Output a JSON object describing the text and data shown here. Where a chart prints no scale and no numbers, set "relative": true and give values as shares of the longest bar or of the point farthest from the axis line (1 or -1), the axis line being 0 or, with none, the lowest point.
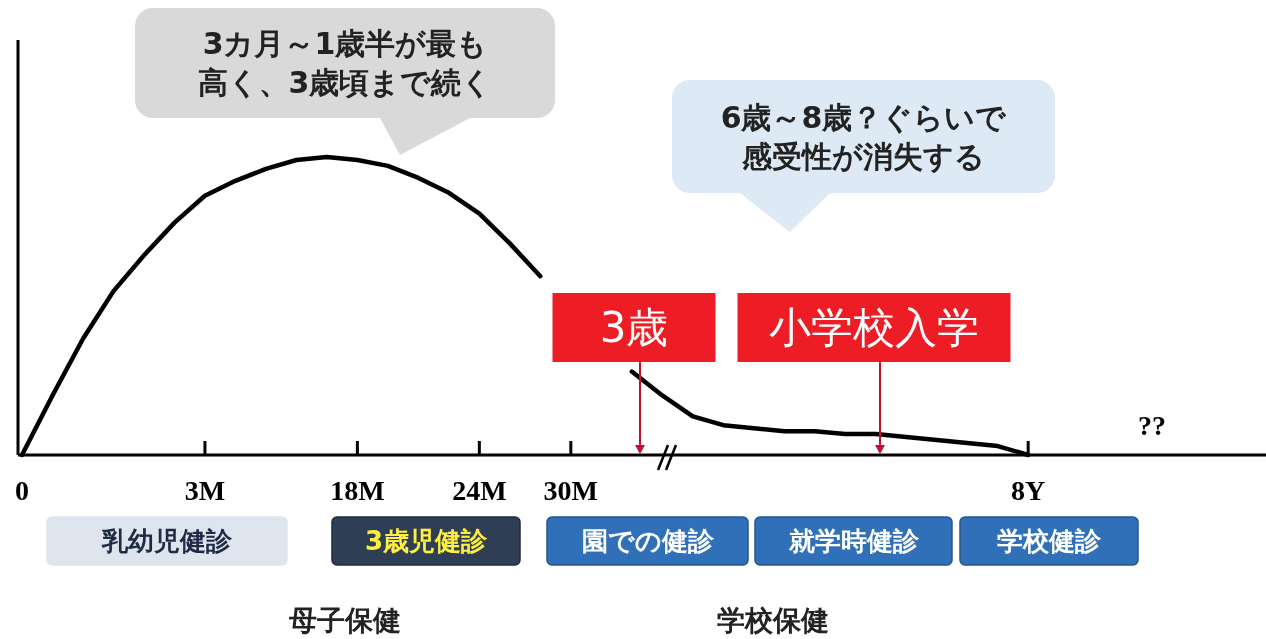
{
  "chart_data": {
    "type": "line",
    "relative": true,
    "color": "#000000",
    "categories": [
      "0",
      null,
      null,
      null,
      null,
      null,
      "3M",
      null,
      null,
      null,
      null,
      "18M",
      null,
      null,
      null,
      "24M",
      null,
      null,
      "30M",
      null,
      null,
      null,
      null,
      null,
      null,
      null,
      null,
      null,
      null,
      null,
      null,
      null,
      null,
      "8Y",
      null,
      null,
      null,
      null,
      null,
      null,
      null
    ],
    "values": [
      0,
      0.2,
      0.39,
      0.55,
      0.67,
      0.78,
      0.87,
      0.92,
      0.96,
      0.99,
      1,
      0.99,
      0.97,
      0.93,
      0.88,
      0.81,
      0.71,
      0.6,
      null,
      null,
      0.28,
      0.2,
      0.13,
      0.1,
      0.09,
      0.08,
      0.08,
      0.07,
      0.07,
      0.06,
      0.05,
      0.04,
      0.03,
      0,
      null,
      null,
      null,
      null,
      null,
      null,
      null
    ],
    "annotations": [
      "3カ月～1歳半が最も高く、3歳頃まで続く",
      "6歳～8歳？ぐらいで感受性が消失する",
      "3歳",
      "小学校入学",
      "??",
      "乳幼児健診",
      "3歳児健診",
      "園での健診",
      "就学時健診",
      "学校健診",
      "母子保健",
      "学校保健"
    ]
  }
}
